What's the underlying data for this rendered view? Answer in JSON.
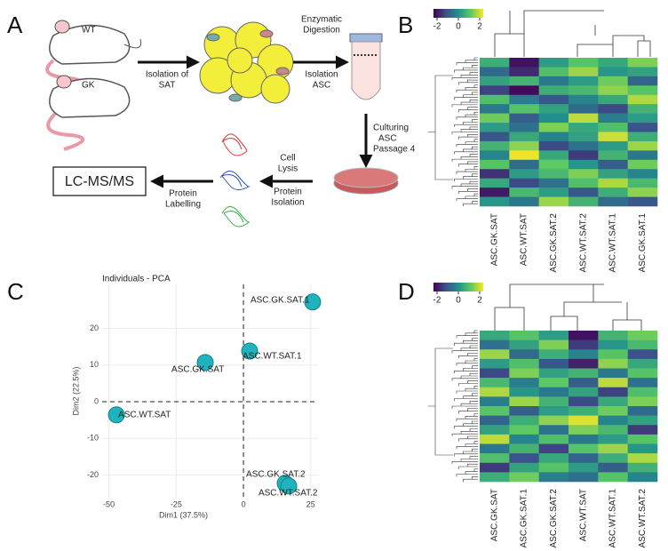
{
  "panel_labels": [
    "A",
    "B",
    "C",
    "D"
  ],
  "schematic": {
    "mice": [
      "WT",
      "GK"
    ],
    "isolation_sat": [
      "Isolation of",
      "SAT"
    ],
    "digestion": [
      "Enzymatic",
      "Digestion",
      "Isolation",
      "ASC"
    ],
    "culturing": [
      "Culturing",
      "ASC",
      "Passage 4"
    ],
    "lysis": [
      "Cell",
      "Lysis",
      "Protein",
      "Isolation"
    ],
    "labelling": [
      "Protein",
      "Labelling"
    ],
    "output": "LC-MS/MS"
  },
  "heatmaps": [
    {
      "colorbar_ticks": [
        -2,
        0,
        2
      ],
      "columns": [
        "ASC.GK.SAT",
        "ASC.WT.SAT",
        "ASC.GK.SAT.2",
        "ASC.WT.SAT.2",
        "ASC.WT.SAT.1",
        "ASC.GK.SAT.1"
      ],
      "values": [
        [
          0.5,
          -1.8,
          0.2,
          0.9,
          0.4,
          1.2
        ],
        [
          -0.6,
          -1.5,
          0.8,
          1.4,
          0.1,
          0.3
        ],
        [
          0.3,
          0.6,
          -0.4,
          0.2,
          1.1,
          -0.7
        ],
        [
          -1.2,
          -1.9,
          0.5,
          0.7,
          1.3,
          0.9
        ],
        [
          0.8,
          -0.3,
          -0.9,
          -0.2,
          0.4,
          1.5
        ],
        [
          -0.4,
          0.9,
          0.3,
          -0.6,
          -1.1,
          0.6
        ],
        [
          1.1,
          -0.8,
          0.0,
          1.6,
          -0.3,
          0.2
        ],
        [
          0.2,
          -0.5,
          1.2,
          0.4,
          0.8,
          -1.0
        ],
        [
          -0.9,
          0.4,
          -0.2,
          0.3,
          1.7,
          0.5
        ],
        [
          0.6,
          1.3,
          -1.1,
          -0.5,
          0.2,
          1.4
        ],
        [
          -0.2,
          1.9,
          0.4,
          -1.3,
          0.6,
          -0.4
        ],
        [
          0.9,
          -0.6,
          1.0,
          0.1,
          -0.8,
          1.1
        ],
        [
          -1.4,
          0.2,
          0.7,
          1.2,
          0.3,
          -0.2
        ],
        [
          0.4,
          -1.1,
          -0.5,
          0.8,
          1.5,
          0.7
        ],
        [
          -1.7,
          0.7,
          0.2,
          -0.9,
          0.5,
          1.3
        ],
        [
          0.1,
          -0.4,
          1.4,
          0.6,
          -0.6,
          -0.9
        ]
      ]
    },
    {
      "colorbar_ticks": [
        -2,
        0,
        2
      ],
      "columns": [
        "ASC.GK.SAT",
        "ASC.GK.SAT.1",
        "ASC.GK.SAT.2",
        "ASC.WT.SAT",
        "ASC.WT.SAT.1",
        "ASC.WT.SAT.2"
      ],
      "values": [
        [
          0.4,
          0.9,
          0.2,
          -1.8,
          0.6,
          1.1
        ],
        [
          -0.5,
          0.3,
          1.2,
          -1.3,
          0.1,
          0.7
        ],
        [
          1.4,
          -0.6,
          0.5,
          -0.2,
          0.9,
          -1.0
        ],
        [
          0.2,
          0.8,
          -0.9,
          -1.6,
          1.3,
          0.4
        ],
        [
          -1.1,
          1.2,
          0.3,
          0.6,
          -0.4,
          0.9
        ],
        [
          0.7,
          -0.3,
          1.0,
          -0.8,
          1.6,
          -0.5
        ],
        [
          1.5,
          0.1,
          -0.4,
          0.3,
          -1.2,
          0.8
        ],
        [
          -0.3,
          1.4,
          0.6,
          -1.1,
          0.4,
          1.2
        ],
        [
          0.9,
          -0.8,
          0.2,
          0.5,
          1.1,
          -0.6
        ],
        [
          -0.7,
          0.5,
          1.3,
          1.8,
          -0.2,
          0.3
        ],
        [
          0.3,
          1.0,
          -0.5,
          1.2,
          0.7,
          -1.3
        ],
        [
          1.6,
          -0.2,
          0.8,
          -0.4,
          0.2,
          0.9
        ],
        [
          -0.4,
          0.6,
          -1.2,
          0.9,
          1.4,
          0.1
        ],
        [
          0.8,
          -1.0,
          0.4,
          -0.7,
          0.5,
          1.5
        ],
        [
          -1.3,
          0.3,
          0.9,
          0.2,
          -0.8,
          0.6
        ],
        [
          0.5,
          1.1,
          -0.3,
          -0.5,
          0.9,
          -0.2
        ]
      ]
    }
  ],
  "chart_data": {
    "type": "scatter",
    "title": "Individuals - PCA",
    "x_label": "Dim1 (37.5%)",
    "y_label": "Dim2 (22.5%)",
    "labels": [
      "ASC.GK.SAT.1",
      "ASC.WT.SAT.1",
      "ASC.GK.SAT",
      "ASC.WT.SAT",
      "ASC.GK.SAT.2",
      "ASC.WT.SAT.2"
    ],
    "x": [
      25.7,
      2.3,
      -14.2,
      -47.2,
      15.5,
      16.8
    ],
    "y": [
      27.2,
      13.8,
      10.7,
      -3.6,
      -22.3,
      -23.0
    ],
    "color": "#1fb3bd",
    "xlim": [
      -52.5,
      27.7
    ],
    "ylim": [
      -26.2,
      32
    ],
    "xticks": [
      -50,
      -25,
      0,
      25
    ],
    "yticks": [
      -20,
      -10,
      0,
      10,
      20
    ],
    "grid": true
  }
}
